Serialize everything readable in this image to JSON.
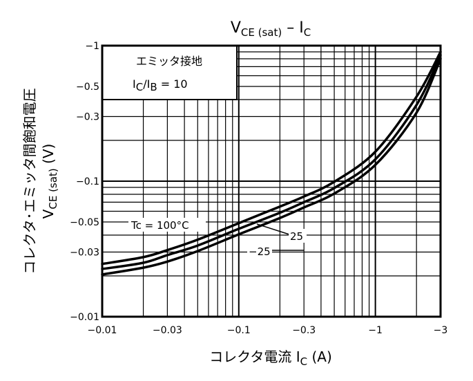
{
  "chart_data": {
    "type": "line",
    "title": {
      "main": "V",
      "sub": "CE (sat)",
      "suffix": " – I",
      "suffix_sub": "C"
    },
    "xlabel": {
      "main": "コレクタ電流 I",
      "sub": "C",
      "unit": " (A)"
    },
    "ylabel": {
      "line1": "コレクタ･エミッタ間飽和電圧",
      "line2_main": "V",
      "line2_sub": "CE (sat)",
      "line2_unit": " (V)"
    },
    "x_scale": "log",
    "y_scale": "log",
    "xlim": [
      -0.01,
      -3
    ],
    "ylim": [
      -0.01,
      -1
    ],
    "x_tick_labels": [
      "−0.01",
      "−0.03",
      "−0.1",
      "−0.3",
      "−1",
      "−3"
    ],
    "x_tick_values": [
      -0.01,
      -0.03,
      -0.1,
      -0.3,
      -1,
      -3
    ],
    "y_tick_labels": [
      "−1",
      "−0.5",
      "−0.3",
      "−0.1",
      "−0.05",
      "−0.03",
      "−0.01"
    ],
    "y_tick_values": [
      -1,
      -0.5,
      -0.3,
      -0.1,
      -0.05,
      -0.03,
      -0.01
    ],
    "legend_box": {
      "line1": "エミッタ接地",
      "line2_a": "I",
      "line2_a_sub": "C",
      "line2_b": "/I",
      "line2_b_sub": "B",
      "line2_c": " = 10"
    },
    "grid": true,
    "series": [
      {
        "name": "Tc = 100°C",
        "x": [
          -0.01,
          -0.02,
          -0.03,
          -0.05,
          -0.1,
          -0.2,
          -0.3,
          -0.5,
          -1,
          -2,
          -3
        ],
        "y": [
          -0.0245,
          -0.0275,
          -0.031,
          -0.037,
          -0.049,
          -0.065,
          -0.077,
          -0.099,
          -0.165,
          -0.42,
          -0.9
        ]
      },
      {
        "name": "25",
        "x": [
          -0.01,
          -0.02,
          -0.03,
          -0.05,
          -0.1,
          -0.2,
          -0.3,
          -0.5,
          -1,
          -2,
          -3
        ],
        "y": [
          -0.0225,
          -0.025,
          -0.0285,
          -0.0335,
          -0.0445,
          -0.0585,
          -0.07,
          -0.089,
          -0.145,
          -0.365,
          -0.85
        ]
      },
      {
        "name": "−25",
        "x": [
          -0.01,
          -0.02,
          -0.03,
          -0.05,
          -0.1,
          -0.2,
          -0.3,
          -0.5,
          -1,
          -2,
          -3
        ],
        "y": [
          -0.0205,
          -0.023,
          -0.0255,
          -0.0305,
          -0.0405,
          -0.0535,
          -0.064,
          -0.081,
          -0.132,
          -0.32,
          -0.8
        ]
      }
    ],
    "annotations": [
      "Tc = 100°C",
      "25",
      "−25"
    ]
  }
}
